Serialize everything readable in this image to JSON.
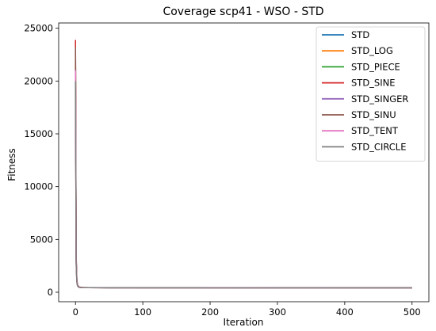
{
  "chart_data": {
    "type": "line",
    "title": "Coverage scp41 - WSO - STD",
    "xlabel": "Iteration",
    "ylabel": "Fitness",
    "xlim": [
      -25,
      525
    ],
    "ylim": [
      -900,
      25500
    ],
    "xticks": [
      0,
      100,
      200,
      300,
      400,
      500
    ],
    "yticks": [
      0,
      5000,
      10000,
      15000,
      20000,
      25000
    ],
    "grid": false,
    "legend_position": "top-right",
    "series": [
      {
        "name": "STD",
        "color": "#1f77b4",
        "x": [
          0,
          1,
          2,
          3,
          5,
          10,
          20,
          50,
          100,
          200,
          300,
          400,
          500
        ],
        "y": [
          22800,
          3200,
          1100,
          650,
          480,
          440,
          430,
          425,
          420,
          418,
          416,
          415,
          414
        ]
      },
      {
        "name": "STD_LOG",
        "color": "#ff7f0e",
        "x": [
          0,
          1,
          2,
          3,
          5,
          10,
          20,
          50,
          100,
          200,
          300,
          400,
          500
        ],
        "y": [
          21500,
          2900,
          1000,
          620,
          470,
          438,
          430,
          424,
          420,
          418,
          416,
          415,
          414
        ]
      },
      {
        "name": "STD_PIECE",
        "color": "#2ca02c",
        "x": [
          0,
          1,
          2,
          3,
          5,
          10,
          20,
          50,
          100,
          200,
          300,
          400,
          500
        ],
        "y": [
          22000,
          3000,
          1050,
          640,
          475,
          440,
          431,
          425,
          421,
          419,
          417,
          416,
          415
        ]
      },
      {
        "name": "STD_SINE",
        "color": "#d62728",
        "x": [
          0,
          1,
          2,
          3,
          5,
          10,
          20,
          50,
          100,
          200,
          300,
          400,
          500
        ],
        "y": [
          23900,
          3500,
          1200,
          700,
          500,
          450,
          435,
          428,
          423,
          420,
          418,
          417,
          416
        ]
      },
      {
        "name": "STD_SINGER",
        "color": "#9467bd",
        "x": [
          0,
          1,
          2,
          3,
          5,
          10,
          20,
          50,
          100,
          200,
          300,
          400,
          500
        ],
        "y": [
          20500,
          2800,
          980,
          610,
          465,
          437,
          429,
          424,
          420,
          418,
          416,
          415,
          414
        ]
      },
      {
        "name": "STD_SINU",
        "color": "#8c564b",
        "x": [
          0,
          1,
          2,
          3,
          5,
          10,
          20,
          50,
          100,
          200,
          300,
          400,
          500
        ],
        "y": [
          23200,
          3300,
          1150,
          680,
          490,
          445,
          432,
          426,
          422,
          419,
          417,
          416,
          415
        ]
      },
      {
        "name": "STD_TENT",
        "color": "#e377c2",
        "x": [
          0,
          1,
          2,
          3,
          5,
          10,
          20,
          50,
          100,
          200,
          300,
          400,
          500
        ],
        "y": [
          21000,
          2950,
          1020,
          630,
          472,
          439,
          430,
          425,
          421,
          418,
          416,
          415,
          414
        ]
      },
      {
        "name": "STD_CIRCLE",
        "color": "#7f7f7f",
        "x": [
          0,
          1,
          2,
          3,
          5,
          10,
          20,
          50,
          100,
          200,
          300,
          400,
          500
        ],
        "y": [
          20000,
          2700,
          950,
          600,
          460,
          436,
          428,
          423,
          419,
          417,
          415,
          414,
          413
        ]
      }
    ]
  }
}
